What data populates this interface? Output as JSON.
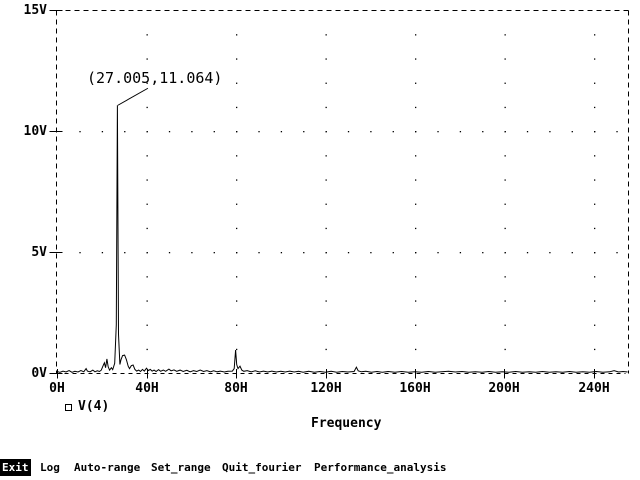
{
  "window": {
    "background": "#ffffff",
    "foreground": "#000000"
  },
  "chart_data": {
    "type": "line",
    "title": "",
    "xlabel": "Frequency",
    "ylabel": "",
    "x_unit": "H",
    "y_unit": "V",
    "xlim": [
      0,
      255.2
    ],
    "ylim": [
      0,
      15
    ],
    "x_ticks": [
      0,
      40,
      80,
      120,
      160,
      200,
      240
    ],
    "x_tick_labels": [
      "0H",
      "40H",
      "80H",
      "120H",
      "160H",
      "200H",
      "240H"
    ],
    "y_ticks": [
      0,
      5,
      10,
      15
    ],
    "y_tick_labels": [
      "0V",
      "5V",
      "10V",
      "15V"
    ],
    "grid": "dotted",
    "legend": {
      "marker": "square",
      "label": "V(4)",
      "position": "bottom-left"
    },
    "annotation": {
      "text": "(27.005,11.064)",
      "x": 27.005,
      "y": 11.064
    },
    "series": [
      {
        "name": "V(4)",
        "points": [
          [
            0,
            0.06
          ],
          [
            1.3,
            0.03
          ],
          [
            2.7,
            0.08
          ],
          [
            4,
            0.04
          ],
          [
            5.4,
            0.1
          ],
          [
            6.7,
            0.03
          ],
          [
            8,
            0.07
          ],
          [
            9.4,
            0.04
          ],
          [
            10.7,
            0.1
          ],
          [
            12,
            0.05
          ],
          [
            13,
            0.18
          ],
          [
            13.6,
            0.08
          ],
          [
            14.8,
            0.05
          ],
          [
            16,
            0.12
          ],
          [
            17,
            0.05
          ],
          [
            18,
            0.09
          ],
          [
            19,
            0.06
          ],
          [
            19.8,
            0.12
          ],
          [
            20.6,
            0.3
          ],
          [
            21.2,
            0.42
          ],
          [
            21.7,
            0.22
          ],
          [
            22.3,
            0.58
          ],
          [
            22.9,
            0.25
          ],
          [
            23.5,
            0.12
          ],
          [
            24.3,
            0.22
          ],
          [
            24.9,
            0.14
          ],
          [
            25.8,
            0.4
          ],
          [
            26.5,
            2.0
          ],
          [
            27.005,
            11.064
          ],
          [
            27.5,
            1.6
          ],
          [
            28.1,
            0.35
          ],
          [
            28.6,
            0.55
          ],
          [
            29.3,
            0.72
          ],
          [
            30.2,
            0.74
          ],
          [
            31,
            0.55
          ],
          [
            31.8,
            0.28
          ],
          [
            32.4,
            0.18
          ],
          [
            33.2,
            0.3
          ],
          [
            34,
            0.33
          ],
          [
            34.8,
            0.15
          ],
          [
            35.6,
            0.08
          ],
          [
            36.5,
            0.12
          ],
          [
            37.3,
            0.06
          ],
          [
            38.2,
            0.15
          ],
          [
            39,
            0.08
          ],
          [
            40,
            0.2
          ],
          [
            40.8,
            0.1
          ],
          [
            41.7,
            0.15
          ],
          [
            42.5,
            0.08
          ],
          [
            43.4,
            0.12
          ],
          [
            44.3,
            0.06
          ],
          [
            45.4,
            0.14
          ],
          [
            46.3,
            0.07
          ],
          [
            47.5,
            0.12
          ],
          [
            48.6,
            0.07
          ],
          [
            50,
            0.16
          ],
          [
            51,
            0.09
          ],
          [
            52.3,
            0.13
          ],
          [
            53.5,
            0.07
          ],
          [
            55,
            0.12
          ],
          [
            56.4,
            0.06
          ],
          [
            58,
            0.11
          ],
          [
            59.5,
            0.05
          ],
          [
            61,
            0.1
          ],
          [
            62.5,
            0.06
          ],
          [
            64,
            0.12
          ],
          [
            65.5,
            0.06
          ],
          [
            67,
            0.1
          ],
          [
            68.6,
            0.05
          ],
          [
            70,
            0.09
          ],
          [
            71.6,
            0.05
          ],
          [
            73,
            0.08
          ],
          [
            74.8,
            0.04
          ],
          [
            76.4,
            0.07
          ],
          [
            78.4,
            0.08
          ],
          [
            79.2,
            0.18
          ],
          [
            79.8,
            0.95
          ],
          [
            80.3,
            0.35
          ],
          [
            80.9,
            0.18
          ],
          [
            81.8,
            0.28
          ],
          [
            82.6,
            0.12
          ],
          [
            83.5,
            0.07
          ],
          [
            85,
            0.1
          ],
          [
            86.8,
            0.05
          ],
          [
            88.6,
            0.09
          ],
          [
            90.5,
            0.04
          ],
          [
            92.3,
            0.08
          ],
          [
            94.2,
            0.04
          ],
          [
            96,
            0.08
          ],
          [
            98,
            0.04
          ],
          [
            100,
            0.07
          ],
          [
            102,
            0.04
          ],
          [
            104,
            0.08
          ],
          [
            106,
            0.04
          ],
          [
            108,
            0.07
          ],
          [
            110,
            0.03
          ],
          [
            112.5,
            0.07
          ],
          [
            115,
            0.03
          ],
          [
            117.5,
            0.06
          ],
          [
            120,
            0.03
          ],
          [
            122.5,
            0.07
          ],
          [
            125,
            0.03
          ],
          [
            127.5,
            0.06
          ],
          [
            130,
            0.04
          ],
          [
            132.8,
            0.06
          ],
          [
            133.8,
            0.24
          ],
          [
            134.6,
            0.09
          ],
          [
            136,
            0.05
          ],
          [
            138,
            0.07
          ],
          [
            140.5,
            0.03
          ],
          [
            143,
            0.06
          ],
          [
            145.5,
            0.03
          ],
          [
            148,
            0.06
          ],
          [
            151,
            0.03
          ],
          [
            154,
            0.06
          ],
          [
            157,
            0.03
          ],
          [
            160,
            0.05
          ],
          [
            163,
            0.03
          ],
          [
            166,
            0.06
          ],
          [
            169,
            0.03
          ],
          [
            172,
            0.05
          ],
          [
            175,
            0.07
          ],
          [
            178,
            0.04
          ],
          [
            181,
            0.06
          ],
          [
            184,
            0.03
          ],
          [
            187,
            0.05
          ],
          [
            190,
            0.03
          ],
          [
            193,
            0.06
          ],
          [
            196,
            0.03
          ],
          [
            199,
            0.05
          ],
          [
            202,
            0.03
          ],
          [
            205,
            0.06
          ],
          [
            208,
            0.03
          ],
          [
            211,
            0.05
          ],
          [
            214,
            0.03
          ],
          [
            217,
            0.06
          ],
          [
            220,
            0.03
          ],
          [
            223,
            0.05
          ],
          [
            226,
            0.03
          ],
          [
            229,
            0.06
          ],
          [
            232,
            0.03
          ],
          [
            235,
            0.05
          ],
          [
            238,
            0.03
          ],
          [
            241,
            0.06
          ],
          [
            244,
            0.03
          ],
          [
            247,
            0.05
          ],
          [
            249,
            0.1
          ],
          [
            251,
            0.04
          ],
          [
            253,
            0.06
          ],
          [
            255,
            0.04
          ]
        ]
      }
    ]
  },
  "menu": {
    "items": [
      {
        "label": "Exit",
        "active": true
      },
      {
        "label": "Log",
        "active": false
      },
      {
        "label": "Auto-range",
        "active": false
      },
      {
        "label": "Set_range",
        "active": false
      },
      {
        "label": "Quit_fourier",
        "active": false
      },
      {
        "label": "Performance_analysis",
        "active": false
      }
    ]
  }
}
